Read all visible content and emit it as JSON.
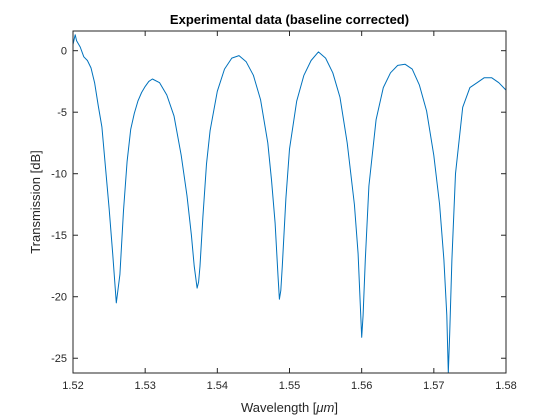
{
  "chart_data": {
    "type": "line",
    "title": "Experimental data (baseline corrected)",
    "xlabel_prefix": "Wavelength [",
    "xlabel_unit": "μm",
    "xlabel_suffix": "]",
    "ylabel": "Transmission [dB]",
    "xlim": [
      1.52,
      1.58
    ],
    "ylim": [
      -26.2,
      1.6
    ],
    "x_ticks": [
      1.52,
      1.53,
      1.54,
      1.55,
      1.56,
      1.57,
      1.58
    ],
    "x_tick_labels": [
      "1.52",
      "1.53",
      "1.54",
      "1.55",
      "1.56",
      "1.57",
      "1.58"
    ],
    "y_ticks": [
      0,
      -5,
      -10,
      -15,
      -20,
      -25
    ],
    "y_tick_labels": [
      "0",
      "-5",
      "-10",
      "-15",
      "-20",
      "-25"
    ],
    "grid": false,
    "legend": "none",
    "line_color": "#0072bd",
    "series": [
      {
        "x": [
          1.52,
          1.5203,
          1.5205,
          1.521,
          1.5215,
          1.522,
          1.5225,
          1.523,
          1.5235,
          1.524,
          1.5245,
          1.525,
          1.5255,
          1.526,
          1.5265,
          1.527,
          1.5275,
          1.528,
          1.5285,
          1.529,
          1.5295,
          1.53,
          1.5305,
          1.531,
          1.532,
          1.533,
          1.534,
          1.535,
          1.5358,
          1.5364,
          1.5368,
          1.5372,
          1.5374,
          1.5376,
          1.538,
          1.5385,
          1.539,
          1.54,
          1.541,
          1.542,
          1.543,
          1.544,
          1.545,
          1.546,
          1.547,
          1.5475,
          1.548,
          1.5484,
          1.5486,
          1.5488,
          1.549,
          1.5495,
          1.55,
          1.551,
          1.552,
          1.553,
          1.554,
          1.555,
          1.556,
          1.557,
          1.558,
          1.559,
          1.5595,
          1.5598,
          1.56,
          1.5602,
          1.5605,
          1.561,
          1.562,
          1.563,
          1.564,
          1.565,
          1.566,
          1.567,
          1.568,
          1.569,
          1.57,
          1.5708,
          1.5714,
          1.5718,
          1.572,
          1.5722,
          1.5725,
          1.573,
          1.574,
          1.575,
          1.576,
          1.577,
          1.578,
          1.579,
          1.58
        ],
        "y": [
          0.5,
          1.3,
          0.8,
          0.3,
          -0.5,
          -0.8,
          -1.4,
          -2.6,
          -4.5,
          -6.2,
          -9.5,
          -12.8,
          -16.5,
          -20.5,
          -18.2,
          -13.0,
          -9.0,
          -6.4,
          -5.1,
          -4.1,
          -3.4,
          -2.9,
          -2.5,
          -2.3,
          -2.6,
          -3.6,
          -5.3,
          -8.5,
          -11.8,
          -15.0,
          -17.5,
          -19.3,
          -18.8,
          -17.5,
          -13.5,
          -9.2,
          -6.5,
          -3.3,
          -1.5,
          -0.6,
          -0.4,
          -0.9,
          -2.0,
          -4.0,
          -7.5,
          -10.5,
          -14.0,
          -18.3,
          -20.2,
          -19.5,
          -17.5,
          -12.0,
          -8.0,
          -4.1,
          -2.0,
          -0.8,
          -0.1,
          -0.6,
          -1.8,
          -3.8,
          -7.5,
          -12.5,
          -16.5,
          -20.5,
          -23.3,
          -21.5,
          -17.0,
          -11.0,
          -5.6,
          -3.0,
          -1.8,
          -1.2,
          -1.1,
          -1.5,
          -2.8,
          -4.9,
          -8.5,
          -12.5,
          -17.0,
          -21.5,
          -26.2,
          -23.0,
          -17.0,
          -10.0,
          -4.6,
          -3.0,
          -2.6,
          -2.2,
          -2.2,
          -2.6,
          -3.2
        ]
      }
    ]
  }
}
